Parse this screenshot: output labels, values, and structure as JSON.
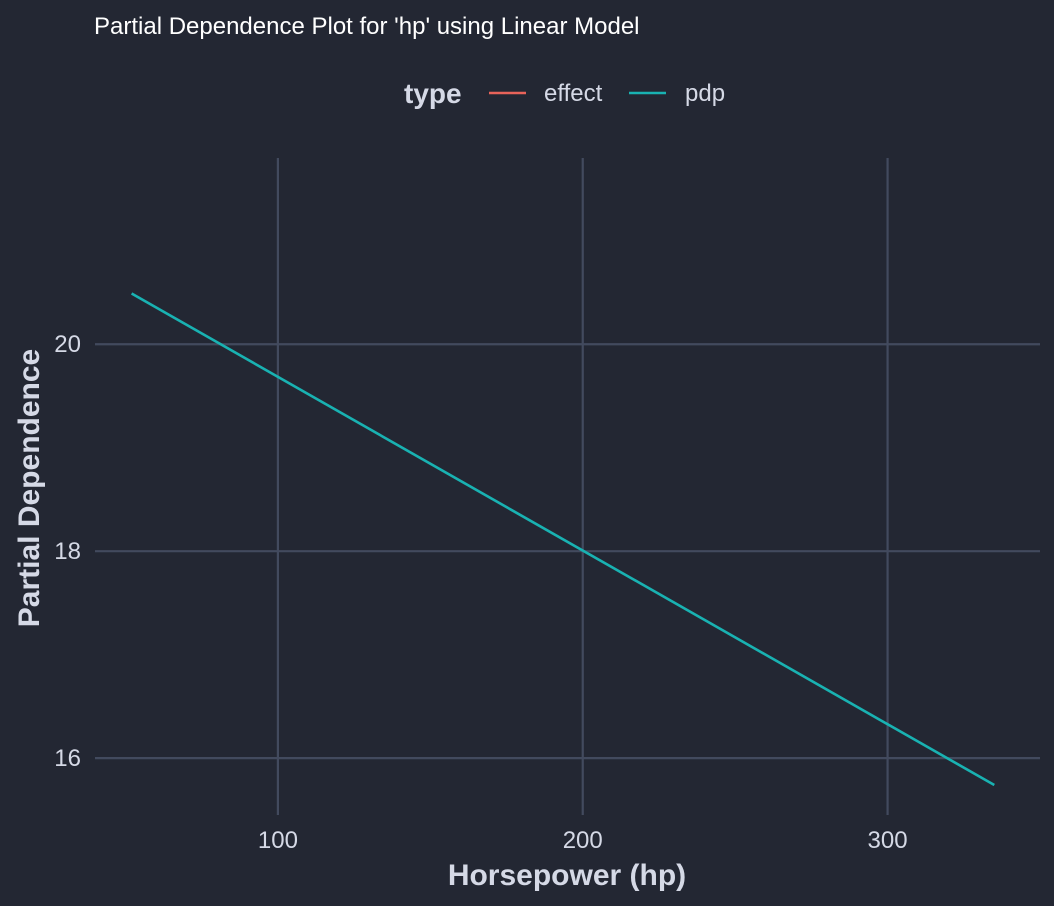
{
  "chart_data": {
    "type": "line",
    "title": "Partial Dependence Plot for 'hp' using Linear Model",
    "xlabel": "Horsepower (hp)",
    "ylabel": "Partial Dependence",
    "xlim": [
      40,
      350
    ],
    "ylim": [
      15.45,
      21.8
    ],
    "xticks": [
      100,
      200,
      300
    ],
    "yticks": [
      16,
      18,
      20
    ],
    "xtick_labels": [
      "100",
      "200",
      "300"
    ],
    "ytick_labels": [
      "16",
      "18",
      "20"
    ],
    "grid": true,
    "legend": {
      "title": "type",
      "placement": "top",
      "entries": [
        {
          "name": "effect",
          "color": "#e8635a"
        },
        {
          "name": "pdp",
          "color": "#19b2b2"
        }
      ]
    },
    "series": [
      {
        "name": "pdp",
        "color": "#19b2b2",
        "x": [
          52,
          335
        ],
        "y": [
          20.49,
          15.74
        ]
      },
      {
        "name": "effect",
        "color": "#e8635a",
        "x": [],
        "y": []
      }
    ]
  }
}
